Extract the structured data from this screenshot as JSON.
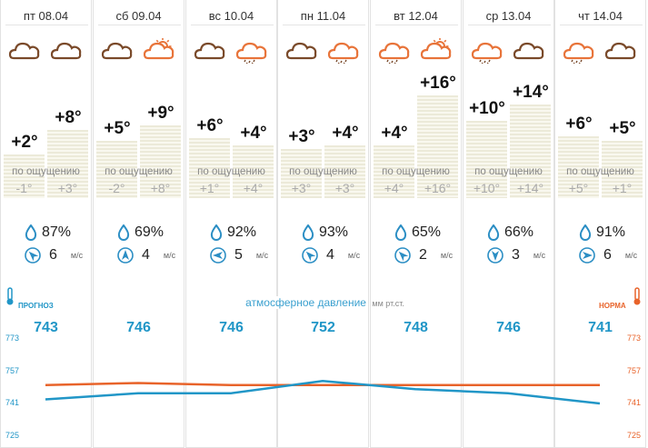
{
  "days": [
    {
      "date": "пт 08.04",
      "icons": [
        "cloud-icon",
        "cloud-icon"
      ],
      "t1": "+2°",
      "t2": "+8°",
      "feel_label": "по ощущению",
      "f1": "-1°",
      "f2": "+3°",
      "humidity": "87%",
      "wind_speed": "6",
      "wind_unit": "м/с",
      "pressure": "743",
      "wind_dir": "north-west",
      "h1": 48,
      "h2": 75
    },
    {
      "date": "сб 09.04",
      "icons": [
        "cloud-icon",
        "sun-cloud-icon"
      ],
      "t1": "+5°",
      "t2": "+9°",
      "feel_label": "по ощущению",
      "f1": "-2°",
      "f2": "+8°",
      "humidity": "69%",
      "wind_speed": "4",
      "wind_unit": "м/с",
      "pressure": "746",
      "wind_dir": "north",
      "h1": 63,
      "h2": 80
    },
    {
      "date": "вс 10.04",
      "icons": [
        "cloud-icon",
        "rain-cloud-icon"
      ],
      "t1": "+6°",
      "t2": "+4°",
      "feel_label": "по ощущению",
      "f1": "+1°",
      "f2": "+4°",
      "humidity": "92%",
      "wind_speed": "5",
      "wind_unit": "м/с",
      "pressure": "746",
      "wind_dir": "west",
      "h1": 66,
      "h2": 58
    },
    {
      "date": "пн 11.04",
      "icons": [
        "cloud-icon",
        "rain-cloud-icon"
      ],
      "t1": "+3°",
      "t2": "+4°",
      "feel_label": "по ощущению",
      "f1": "+3°",
      "f2": "+3°",
      "humidity": "93%",
      "wind_speed": "4",
      "wind_unit": "м/с",
      "pressure": "752",
      "wind_dir": "north-west",
      "h1": 54,
      "h2": 58
    },
    {
      "date": "вт 12.04",
      "icons": [
        "rain-cloud-icon",
        "sun-cloud-icon"
      ],
      "t1": "+4°",
      "t2": "+16°",
      "feel_label": "по ощущению",
      "f1": "+4°",
      "f2": "+16°",
      "humidity": "65%",
      "wind_speed": "2",
      "wind_unit": "м/с",
      "pressure": "748",
      "wind_dir": "north-west",
      "h1": 58,
      "h2": 113
    },
    {
      "date": "ср 13.04",
      "icons": [
        "rain-cloud-icon",
        "cloud-icon"
      ],
      "t1": "+10°",
      "t2": "+14°",
      "feel_label": "по ощущению",
      "f1": "+10°",
      "f2": "+14°",
      "humidity": "66%",
      "wind_speed": "3",
      "wind_unit": "м/с",
      "pressure": "746",
      "wind_dir": "south",
      "h1": 85,
      "h2": 103
    },
    {
      "date": "чт 14.04",
      "icons": [
        "rain-cloud-icon",
        "cloud-icon"
      ],
      "t1": "+6°",
      "t2": "+5°",
      "feel_label": "по ощущению",
      "f1": "+5°",
      "f2": "+1°",
      "humidity": "91%",
      "wind_speed": "6",
      "wind_unit": "м/с",
      "pressure": "741",
      "wind_dir": "east",
      "h1": 68,
      "h2": 63
    }
  ],
  "pressure_section": {
    "title": "атмосферное давление",
    "unit": "мм рт.ст.",
    "forecast_label": "прогноз",
    "norm_label": "норма",
    "scale": [
      "773",
      "757",
      "741",
      "725"
    ],
    "forecast_values": [
      743,
      746,
      746,
      752,
      748,
      746,
      741
    ],
    "norm_values": [
      750,
      751,
      750,
      750,
      750,
      750,
      750
    ],
    "scale_min": 725,
    "scale_max": 773
  },
  "colors": {
    "forecast": "#2196c7",
    "norm": "#e8632a",
    "cloud_brown": "#7a4a2a",
    "cloud_orange": "#e8743a",
    "drop": "#2b8ec4"
  }
}
